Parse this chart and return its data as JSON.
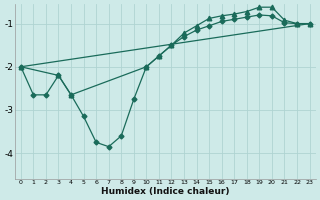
{
  "xlabel": "Humidex (Indice chaleur)",
  "background_color": "#ceeae8",
  "grid_color": "#afd4d2",
  "line_color": "#1a6b5a",
  "xlim": [
    -0.5,
    23.5
  ],
  "ylim": [
    -4.6,
    -0.55
  ],
  "yticks": [
    -4,
    -3,
    -2,
    -1
  ],
  "xticks": [
    0,
    1,
    2,
    3,
    4,
    5,
    6,
    7,
    8,
    9,
    10,
    11,
    12,
    13,
    14,
    15,
    16,
    17,
    18,
    19,
    20,
    21,
    22,
    23
  ],
  "series1_x": [
    0,
    1,
    2,
    3,
    4,
    5,
    6,
    7,
    8,
    9,
    10,
    11,
    12,
    13,
    14,
    15,
    16,
    17,
    18,
    19,
    20,
    21,
    22,
    23
  ],
  "series1_y": [
    -2.0,
    -2.65,
    -2.65,
    -2.2,
    -2.65,
    -3.15,
    -3.75,
    -3.85,
    -3.6,
    -2.75,
    -2.0,
    -1.75,
    -1.5,
    -1.3,
    -1.15,
    -1.05,
    -0.95,
    -0.9,
    -0.85,
    -0.8,
    -0.82,
    -0.98,
    -1.0,
    -1.0
  ],
  "series2_x": [
    0,
    3,
    4,
    10,
    11,
    12,
    13,
    14,
    15,
    16,
    17,
    18,
    19,
    20,
    21,
    22,
    23
  ],
  "series2_y": [
    -2.0,
    -2.2,
    -2.65,
    -2.0,
    -1.75,
    -1.5,
    -1.22,
    -1.05,
    -0.88,
    -0.82,
    -0.78,
    -0.72,
    -0.62,
    -0.62,
    -0.92,
    -1.0,
    -1.0
  ],
  "series3_x": [
    0,
    23
  ],
  "series3_y": [
    -2.0,
    -1.0
  ],
  "marker_size": 2.5,
  "linewidth": 0.9
}
